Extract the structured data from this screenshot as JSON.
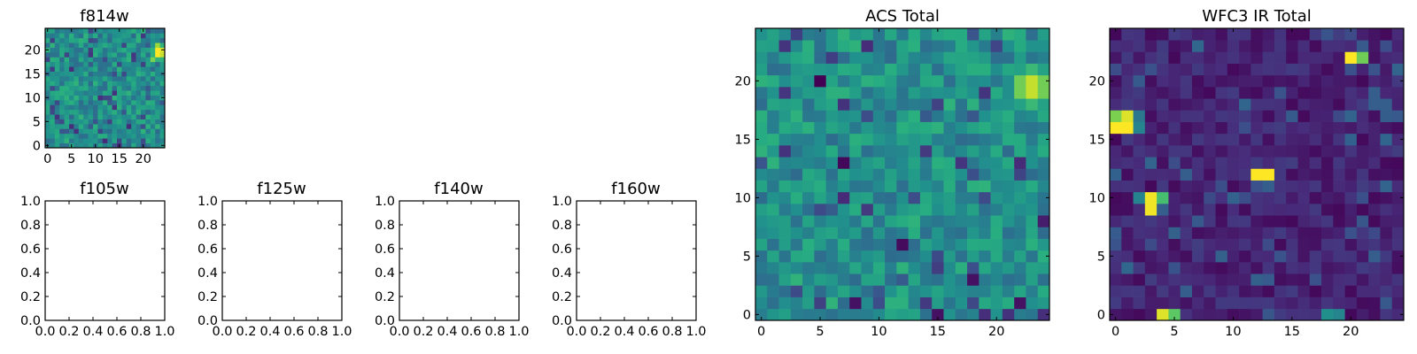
{
  "chart_data": [
    {
      "type": "heatmap",
      "title": "f814w",
      "size": 25,
      "xticks": [
        "0",
        "5",
        "10",
        "15",
        "20"
      ],
      "yticks": [
        "0",
        "5",
        "10",
        "15",
        "20"
      ],
      "colormap": "viridis",
      "peak_center": [
        23.5,
        19.5
      ],
      "features": [
        {
          "x": 23,
          "y": 20,
          "value": 1.0
        },
        {
          "x": 23,
          "y": 19,
          "value": 1.0
        },
        {
          "x": 24,
          "y": 20,
          "value": 0.95
        },
        {
          "x": 24,
          "y": 19,
          "value": 0.92
        },
        {
          "x": 23,
          "y": 21,
          "value": 0.85
        },
        {
          "x": 22,
          "y": 18,
          "value": 0.8
        }
      ],
      "seed": 11
    },
    {
      "type": "heatmap",
      "title": "ACS Total",
      "size": 25,
      "xticks": [
        "0",
        "5",
        "10",
        "15",
        "20"
      ],
      "yticks": [
        "0",
        "5",
        "10",
        "15",
        "20"
      ],
      "colormap": "viridis",
      "peak_center": [
        23.0,
        19.5
      ],
      "features": [
        {
          "x": 5,
          "y": 20,
          "value": 0.0
        },
        {
          "x": 7,
          "y": 13,
          "value": 0.02
        },
        {
          "x": 12,
          "y": 6,
          "value": 0.03
        },
        {
          "x": 8,
          "y": 1,
          "value": 0.05
        },
        {
          "x": 18,
          "y": 3,
          "value": 0.05
        },
        {
          "x": 15,
          "y": 0,
          "value": 0.05
        },
        {
          "x": 22,
          "y": 1,
          "value": 0.05
        },
        {
          "x": 24,
          "y": 8,
          "value": 0.08
        }
      ],
      "seed": 23
    },
    {
      "type": "heatmap",
      "title": "WFC3 IR Total",
      "size": 25,
      "xticks": [
        "0",
        "5",
        "10",
        "15",
        "20"
      ],
      "yticks": [
        "0",
        "5",
        "10",
        "15",
        "20"
      ],
      "colormap": "viridis",
      "background": "low",
      "features": [
        {
          "x": 0,
          "y": 16,
          "value": 1.0
        },
        {
          "x": 1,
          "y": 16,
          "value": 1.0
        },
        {
          "x": 0,
          "y": 17,
          "value": 0.8
        },
        {
          "x": 1,
          "y": 17,
          "value": 0.95
        },
        {
          "x": 2,
          "y": 16,
          "value": 0.45
        },
        {
          "x": 2,
          "y": 17,
          "value": 0.4
        },
        {
          "x": 3,
          "y": 10,
          "value": 0.98
        },
        {
          "x": 3,
          "y": 9,
          "value": 0.98
        },
        {
          "x": 4,
          "y": 10,
          "value": 0.7
        },
        {
          "x": 2,
          "y": 10,
          "value": 0.45
        },
        {
          "x": 4,
          "y": 9,
          "value": 0.3
        },
        {
          "x": 12,
          "y": 12,
          "value": 1.0
        },
        {
          "x": 13,
          "y": 12,
          "value": 1.0
        },
        {
          "x": 12,
          "y": 11,
          "value": 0.25
        },
        {
          "x": 13,
          "y": 11,
          "value": 0.3
        },
        {
          "x": 20,
          "y": 22,
          "value": 1.0
        },
        {
          "x": 21,
          "y": 22,
          "value": 0.78
        },
        {
          "x": 20,
          "y": 21,
          "value": 0.25
        },
        {
          "x": 4,
          "y": 0,
          "value": 0.95
        },
        {
          "x": 5,
          "y": 0,
          "value": 0.75
        },
        {
          "x": 18,
          "y": 0,
          "value": 0.5
        },
        {
          "x": 19,
          "y": 0,
          "value": 0.45
        },
        {
          "x": 22,
          "y": 18,
          "value": 0.3
        },
        {
          "x": 22,
          "y": 19,
          "value": 0.3
        },
        {
          "x": 23,
          "y": 18,
          "value": 0.3
        },
        {
          "x": 24,
          "y": 17,
          "value": 0.28
        }
      ],
      "seed": 37
    },
    {
      "type": "empty",
      "title": "f105w",
      "xlim": [
        0,
        1
      ],
      "ylim": [
        0,
        1
      ],
      "xticks": [
        "0.0",
        "0.2",
        "0.4",
        "0.6",
        "0.8",
        "1.0"
      ],
      "yticks": [
        "0.0",
        "0.2",
        "0.4",
        "0.6",
        "0.8",
        "1.0"
      ]
    },
    {
      "type": "empty",
      "title": "f125w",
      "xlim": [
        0,
        1
      ],
      "ylim": [
        0,
        1
      ],
      "xticks": [
        "0.0",
        "0.2",
        "0.4",
        "0.6",
        "0.8",
        "1.0"
      ],
      "yticks": [
        "0.0",
        "0.2",
        "0.4",
        "0.6",
        "0.8",
        "1.0"
      ]
    },
    {
      "type": "empty",
      "title": "f140w",
      "xlim": [
        0,
        1
      ],
      "ylim": [
        0,
        1
      ],
      "xticks": [
        "0.0",
        "0.2",
        "0.4",
        "0.6",
        "0.8",
        "1.0"
      ],
      "yticks": [
        "0.0",
        "0.2",
        "0.4",
        "0.6",
        "0.8",
        "1.0"
      ]
    },
    {
      "type": "empty",
      "title": "f160w",
      "xlim": [
        0,
        1
      ],
      "ylim": [
        0,
        1
      ],
      "xticks": [
        "0.0",
        "0.2",
        "0.4",
        "0.6",
        "0.8",
        "1.0"
      ],
      "yticks": [
        "0.0",
        "0.2",
        "0.4",
        "0.6",
        "0.8",
        "1.0"
      ]
    }
  ]
}
